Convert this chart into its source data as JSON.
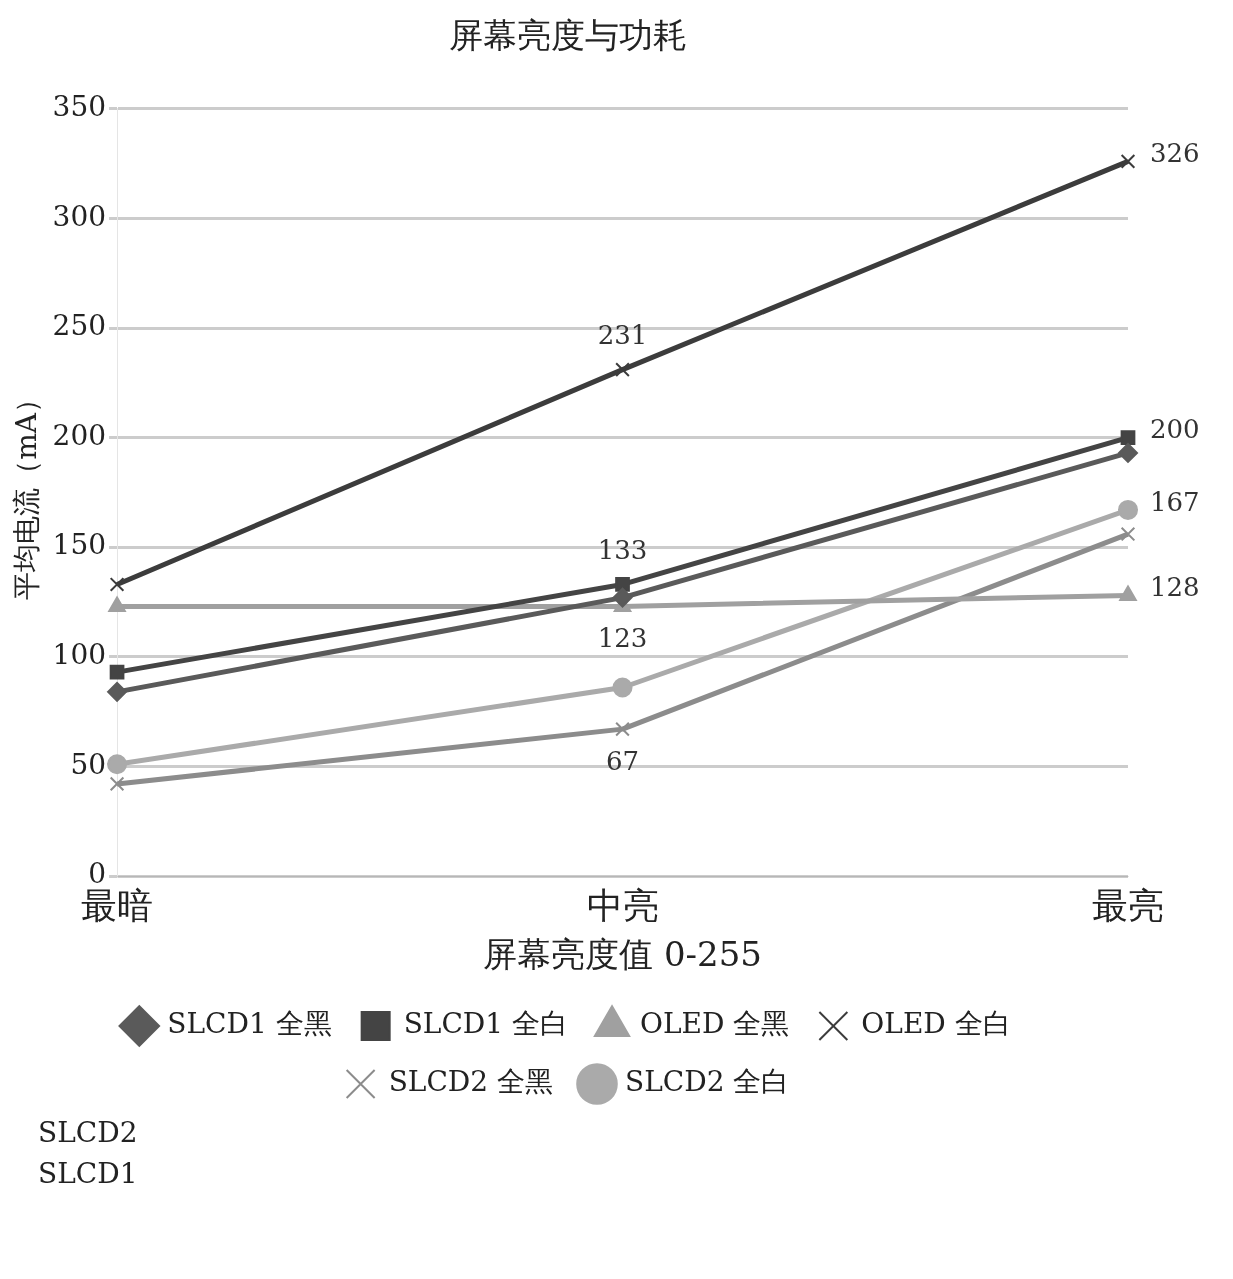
{
  "chart_data": {
    "type": "line",
    "title": "屏幕亮度与功耗",
    "xlabel": "屏幕亮度值 0-255",
    "ylabel": "平均电流（mA）",
    "categories": [
      "最暗",
      "中亮",
      "最亮"
    ],
    "series": [
      {
        "name": "SLCD1 全黑",
        "color": "#5a5a5a",
        "marker": "diamond",
        "values": [
          84,
          127,
          193
        ]
      },
      {
        "name": "SLCD1 全白",
        "color": "#444444",
        "marker": "square",
        "values": [
          93,
          133,
          200
        ],
        "value_labels": [
          null,
          "133",
          "200"
        ]
      },
      {
        "name": "OLED 全黑",
        "color": "#a0a0a0",
        "marker": "triangle",
        "values": [
          123,
          123,
          128
        ],
        "value_labels": [
          null,
          "123",
          "128"
        ]
      },
      {
        "name": "OLED 全白",
        "color": "#3c3c3c",
        "marker": "cross",
        "values": [
          133,
          231,
          326
        ],
        "value_labels": [
          null,
          "231",
          "326"
        ]
      },
      {
        "name": "SLCD2 全黑",
        "color": "#8c8c8c",
        "marker": "cross",
        "values": [
          42,
          67,
          156
        ],
        "value_labels": [
          null,
          "67",
          null
        ]
      },
      {
        "name": "SLCD2 全白",
        "color": "#aaaaaa",
        "marker": "circle",
        "values": [
          51,
          86,
          167
        ],
        "value_labels": [
          null,
          null,
          "167"
        ]
      }
    ],
    "ylim": [
      0,
      350
    ],
    "yticks": [
      0,
      50,
      100,
      150,
      200,
      250,
      300,
      350
    ],
    "grid": "y",
    "legend": "bottom",
    "line_style": "solid",
    "annotations": [
      "SLCD2",
      "SLCD1"
    ]
  }
}
